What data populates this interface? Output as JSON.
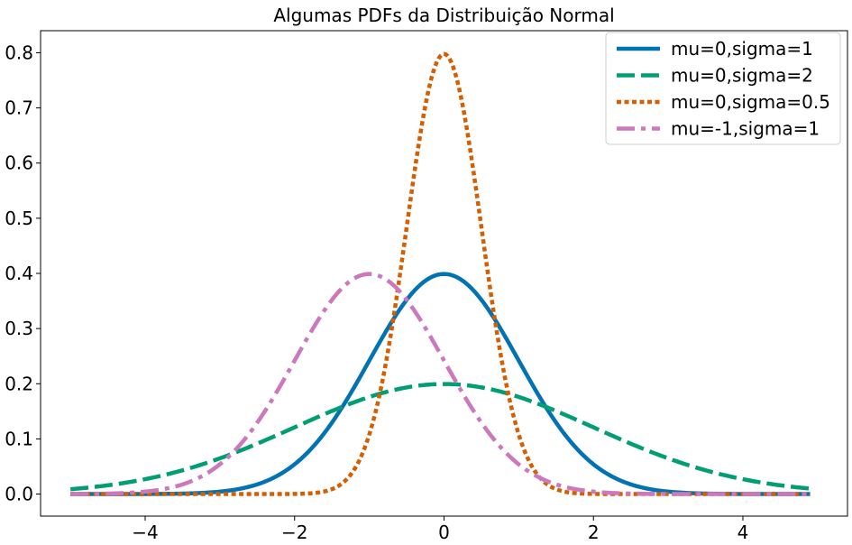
{
  "chart_data": {
    "type": "line",
    "title": "Algumas PDFs da Distribuição Normal",
    "xlabel": "",
    "ylabel": "",
    "xlim": [
      -5.4,
      5.4
    ],
    "ylim": [
      -0.04,
      0.84
    ],
    "x_ticks": [
      -4,
      -2,
      0,
      2,
      4
    ],
    "x_tick_labels": [
      "−4",
      "−2",
      "0",
      "2",
      "4"
    ],
    "y_ticks": [
      0.0,
      0.1,
      0.2,
      0.3,
      0.4,
      0.5,
      0.6,
      0.7,
      0.8
    ],
    "y_tick_labels": [
      "0.0",
      "0.1",
      "0.2",
      "0.3",
      "0.4",
      "0.5",
      "0.6",
      "0.7",
      "0.8"
    ],
    "x_range": [
      -5.0,
      4.9
    ],
    "grid": false,
    "legend_position": "top-right",
    "series": [
      {
        "name": "mu=0,sigma=1",
        "mu": 0,
        "sigma": 1,
        "color": "#0173b2",
        "style": "solid"
      },
      {
        "name": "mu=0,sigma=2",
        "mu": 0,
        "sigma": 2,
        "color": "#029e73",
        "style": "dashed"
      },
      {
        "name": "mu=0,sigma=0.5",
        "mu": 0,
        "sigma": 0.5,
        "color": "#d55e00",
        "style": "dotted"
      },
      {
        "name": "mu=-1,sigma=1",
        "mu": -1,
        "sigma": 1,
        "color": "#cc78bc",
        "style": "dashdot"
      }
    ]
  }
}
